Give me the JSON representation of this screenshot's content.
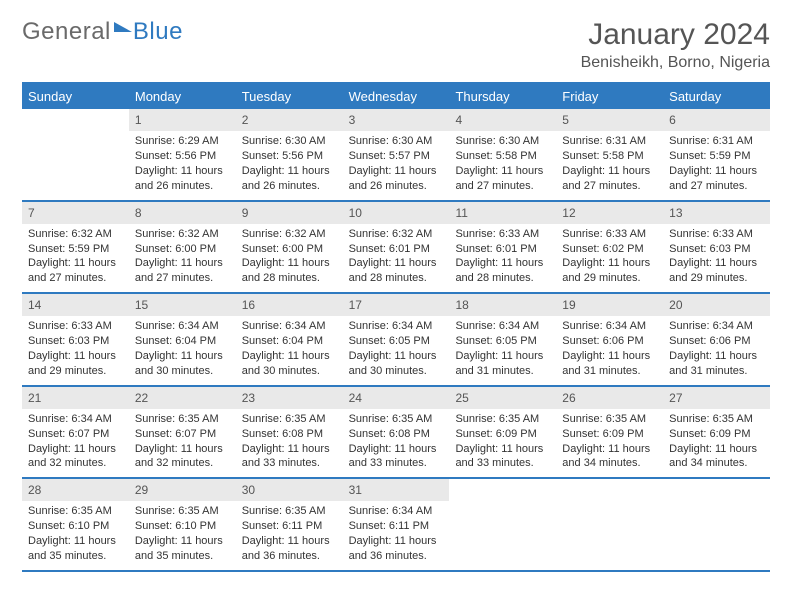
{
  "brand": {
    "part1": "General",
    "part2": "Blue"
  },
  "title": "January 2024",
  "location": "Benisheikh, Borno, Nigeria",
  "colors": {
    "accent": "#2f7ac0",
    "header_bg": "#e9e9e9",
    "text": "#333333",
    "muted": "#555555",
    "bg": "#ffffff"
  },
  "typography": {
    "month_title_fontsize": 30,
    "location_fontsize": 16,
    "dow_fontsize": 13,
    "daynum_fontsize": 12,
    "body_fontsize": 11
  },
  "days_of_week": [
    "Sunday",
    "Monday",
    "Tuesday",
    "Wednesday",
    "Thursday",
    "Friday",
    "Saturday"
  ],
  "weeks": [
    [
      {
        "n": "",
        "sunrise": "",
        "sunset": "",
        "daylight": ""
      },
      {
        "n": "1",
        "sunrise": "Sunrise: 6:29 AM",
        "sunset": "Sunset: 5:56 PM",
        "daylight": "Daylight: 11 hours and 26 minutes."
      },
      {
        "n": "2",
        "sunrise": "Sunrise: 6:30 AM",
        "sunset": "Sunset: 5:56 PM",
        "daylight": "Daylight: 11 hours and 26 minutes."
      },
      {
        "n": "3",
        "sunrise": "Sunrise: 6:30 AM",
        "sunset": "Sunset: 5:57 PM",
        "daylight": "Daylight: 11 hours and 26 minutes."
      },
      {
        "n": "4",
        "sunrise": "Sunrise: 6:30 AM",
        "sunset": "Sunset: 5:58 PM",
        "daylight": "Daylight: 11 hours and 27 minutes."
      },
      {
        "n": "5",
        "sunrise": "Sunrise: 6:31 AM",
        "sunset": "Sunset: 5:58 PM",
        "daylight": "Daylight: 11 hours and 27 minutes."
      },
      {
        "n": "6",
        "sunrise": "Sunrise: 6:31 AM",
        "sunset": "Sunset: 5:59 PM",
        "daylight": "Daylight: 11 hours and 27 minutes."
      }
    ],
    [
      {
        "n": "7",
        "sunrise": "Sunrise: 6:32 AM",
        "sunset": "Sunset: 5:59 PM",
        "daylight": "Daylight: 11 hours and 27 minutes."
      },
      {
        "n": "8",
        "sunrise": "Sunrise: 6:32 AM",
        "sunset": "Sunset: 6:00 PM",
        "daylight": "Daylight: 11 hours and 27 minutes."
      },
      {
        "n": "9",
        "sunrise": "Sunrise: 6:32 AM",
        "sunset": "Sunset: 6:00 PM",
        "daylight": "Daylight: 11 hours and 28 minutes."
      },
      {
        "n": "10",
        "sunrise": "Sunrise: 6:32 AM",
        "sunset": "Sunset: 6:01 PM",
        "daylight": "Daylight: 11 hours and 28 minutes."
      },
      {
        "n": "11",
        "sunrise": "Sunrise: 6:33 AM",
        "sunset": "Sunset: 6:01 PM",
        "daylight": "Daylight: 11 hours and 28 minutes."
      },
      {
        "n": "12",
        "sunrise": "Sunrise: 6:33 AM",
        "sunset": "Sunset: 6:02 PM",
        "daylight": "Daylight: 11 hours and 29 minutes."
      },
      {
        "n": "13",
        "sunrise": "Sunrise: 6:33 AM",
        "sunset": "Sunset: 6:03 PM",
        "daylight": "Daylight: 11 hours and 29 minutes."
      }
    ],
    [
      {
        "n": "14",
        "sunrise": "Sunrise: 6:33 AM",
        "sunset": "Sunset: 6:03 PM",
        "daylight": "Daylight: 11 hours and 29 minutes."
      },
      {
        "n": "15",
        "sunrise": "Sunrise: 6:34 AM",
        "sunset": "Sunset: 6:04 PM",
        "daylight": "Daylight: 11 hours and 30 minutes."
      },
      {
        "n": "16",
        "sunrise": "Sunrise: 6:34 AM",
        "sunset": "Sunset: 6:04 PM",
        "daylight": "Daylight: 11 hours and 30 minutes."
      },
      {
        "n": "17",
        "sunrise": "Sunrise: 6:34 AM",
        "sunset": "Sunset: 6:05 PM",
        "daylight": "Daylight: 11 hours and 30 minutes."
      },
      {
        "n": "18",
        "sunrise": "Sunrise: 6:34 AM",
        "sunset": "Sunset: 6:05 PM",
        "daylight": "Daylight: 11 hours and 31 minutes."
      },
      {
        "n": "19",
        "sunrise": "Sunrise: 6:34 AM",
        "sunset": "Sunset: 6:06 PM",
        "daylight": "Daylight: 11 hours and 31 minutes."
      },
      {
        "n": "20",
        "sunrise": "Sunrise: 6:34 AM",
        "sunset": "Sunset: 6:06 PM",
        "daylight": "Daylight: 11 hours and 31 minutes."
      }
    ],
    [
      {
        "n": "21",
        "sunrise": "Sunrise: 6:34 AM",
        "sunset": "Sunset: 6:07 PM",
        "daylight": "Daylight: 11 hours and 32 minutes."
      },
      {
        "n": "22",
        "sunrise": "Sunrise: 6:35 AM",
        "sunset": "Sunset: 6:07 PM",
        "daylight": "Daylight: 11 hours and 32 minutes."
      },
      {
        "n": "23",
        "sunrise": "Sunrise: 6:35 AM",
        "sunset": "Sunset: 6:08 PM",
        "daylight": "Daylight: 11 hours and 33 minutes."
      },
      {
        "n": "24",
        "sunrise": "Sunrise: 6:35 AM",
        "sunset": "Sunset: 6:08 PM",
        "daylight": "Daylight: 11 hours and 33 minutes."
      },
      {
        "n": "25",
        "sunrise": "Sunrise: 6:35 AM",
        "sunset": "Sunset: 6:09 PM",
        "daylight": "Daylight: 11 hours and 33 minutes."
      },
      {
        "n": "26",
        "sunrise": "Sunrise: 6:35 AM",
        "sunset": "Sunset: 6:09 PM",
        "daylight": "Daylight: 11 hours and 34 minutes."
      },
      {
        "n": "27",
        "sunrise": "Sunrise: 6:35 AM",
        "sunset": "Sunset: 6:09 PM",
        "daylight": "Daylight: 11 hours and 34 minutes."
      }
    ],
    [
      {
        "n": "28",
        "sunrise": "Sunrise: 6:35 AM",
        "sunset": "Sunset: 6:10 PM",
        "daylight": "Daylight: 11 hours and 35 minutes."
      },
      {
        "n": "29",
        "sunrise": "Sunrise: 6:35 AM",
        "sunset": "Sunset: 6:10 PM",
        "daylight": "Daylight: 11 hours and 35 minutes."
      },
      {
        "n": "30",
        "sunrise": "Sunrise: 6:35 AM",
        "sunset": "Sunset: 6:11 PM",
        "daylight": "Daylight: 11 hours and 36 minutes."
      },
      {
        "n": "31",
        "sunrise": "Sunrise: 6:34 AM",
        "sunset": "Sunset: 6:11 PM",
        "daylight": "Daylight: 11 hours and 36 minutes."
      },
      {
        "n": "",
        "sunrise": "",
        "sunset": "",
        "daylight": ""
      },
      {
        "n": "",
        "sunrise": "",
        "sunset": "",
        "daylight": ""
      },
      {
        "n": "",
        "sunrise": "",
        "sunset": "",
        "daylight": ""
      }
    ]
  ]
}
